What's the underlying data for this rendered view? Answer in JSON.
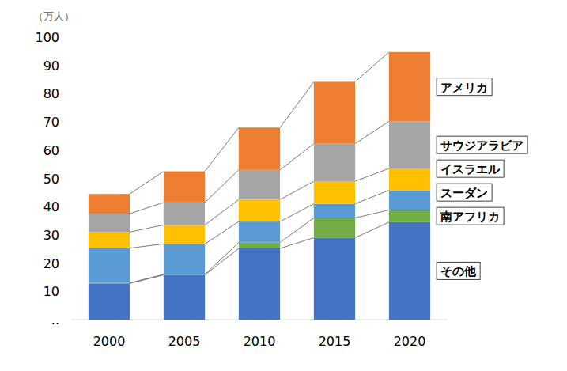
{
  "chart_data": {
    "type": "bar",
    "stacked": true,
    "y_label": "（万人）",
    "categories": [
      "2000",
      "2005",
      "2010",
      "2015",
      "2020"
    ],
    "series": [
      {
        "name": "その他",
        "color": "#4472c4",
        "values": [
          12.8,
          15.8,
          25.2,
          29.0,
          34.5
        ]
      },
      {
        "name": "南アフリカ",
        "color": "#70ad47",
        "values": [
          0.2,
          0.2,
          2.1,
          7.0,
          4.3
        ]
      },
      {
        "name": "スーダン",
        "color": "#5b9bd5",
        "values": [
          12.3,
          10.8,
          7.4,
          5.0,
          7.0
        ]
      },
      {
        "name": "イスラエル",
        "color": "#ffc000",
        "values": [
          5.7,
          6.7,
          7.8,
          8.0,
          7.7
        ]
      },
      {
        "name": "サウジアラビア",
        "color": "#a5a5a5",
        "values": [
          6.5,
          8.0,
          10.5,
          13.3,
          16.7
        ]
      },
      {
        "name": "アメリカ",
        "color": "#ed7d31",
        "values": [
          7.0,
          11.0,
          15.0,
          21.9,
          24.5
        ]
      }
    ],
    "ylim": [
      0,
      100
    ],
    "yticks": [
      {
        "value": 0,
        "label": ".."
      },
      10,
      20,
      30,
      40,
      50,
      60,
      70,
      80,
      90,
      100
    ],
    "grid": false,
    "legend": "right"
  }
}
